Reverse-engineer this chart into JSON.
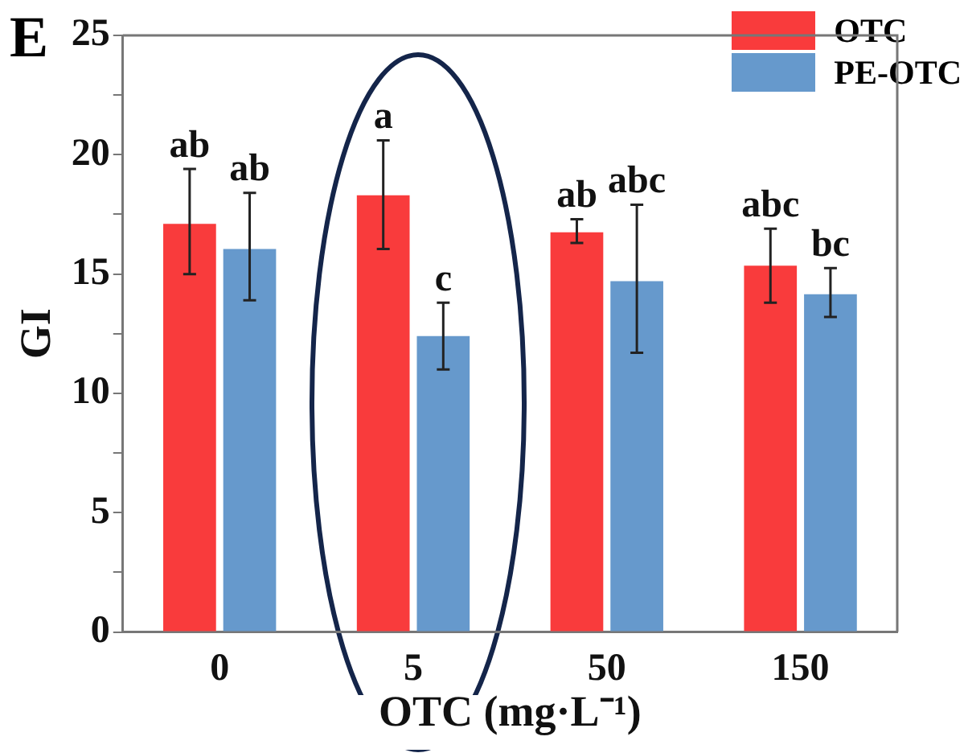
{
  "chart_data": {
    "type": "bar",
    "xlabel": "OTC (mg·L⁻¹)",
    "ylabel": "GI",
    "categories": [
      "0",
      "5",
      "50",
      "150"
    ],
    "series": [
      {
        "name": "OTC",
        "color": "#f93b3c",
        "values": [
          17.1,
          18.3,
          16.75,
          15.35
        ],
        "errors": [
          [
            15.0,
            19.4
          ],
          [
            16.05,
            20.6
          ],
          [
            16.3,
            17.3
          ],
          [
            13.8,
            16.9
          ]
        ],
        "value_labels": [
          "ab",
          "a",
          "ab",
          "abc"
        ]
      },
      {
        "name": "PE-OTC",
        "color": "#6699cc",
        "values": [
          16.05,
          12.4,
          14.7,
          14.15
        ],
        "errors": [
          [
            13.9,
            18.4
          ],
          [
            11.0,
            13.8
          ],
          [
            11.7,
            17.9
          ],
          [
            13.2,
            15.25
          ]
        ],
        "value_labels": [
          "ab",
          "c",
          "abc",
          "bc"
        ]
      }
    ],
    "ylim": [
      0,
      25
    ],
    "yticks": [
      0,
      {
        "value": 2.5,
        "label": null
      },
      5,
      {
        "value": 7.5,
        "label": null
      },
      10,
      {
        "value": 12.5,
        "label": null
      },
      15,
      {
        "value": 17.5,
        "label": null
      },
      20,
      {
        "value": 22.5,
        "label": null
      },
      25
    ],
    "grid": false,
    "legend": "top right",
    "annotations": [
      "E"
    ]
  }
}
